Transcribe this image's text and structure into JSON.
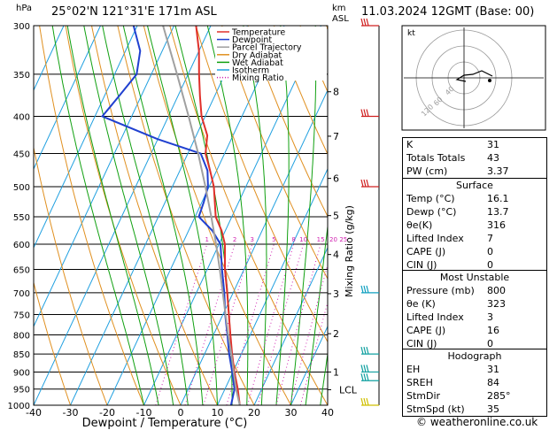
{
  "header": {
    "hpa_label": "hPa",
    "location": "25°02'N  121°31'E  171m  ASL",
    "km_label": "km",
    "asl_label": "ASL",
    "datetime": "11.03.2024  12GMT  (Base: 00)"
  },
  "footer": {
    "credit": "© weatheronline.co.uk"
  },
  "legend": [
    {
      "label": "Temperature",
      "color": "#e0302a",
      "style": "solid"
    },
    {
      "label": "Dewpoint",
      "color": "#2040d0",
      "style": "solid"
    },
    {
      "label": "Parcel Trajectory",
      "color": "#a0a0a0",
      "style": "solid"
    },
    {
      "label": "Dry Adiabat",
      "color": "#e09020",
      "style": "solid"
    },
    {
      "label": "Wet Adiabat",
      "color": "#10a010",
      "style": "solid"
    },
    {
      "label": "Isotherm",
      "color": "#20a0e0",
      "style": "solid"
    },
    {
      "label": "Mixing Ratio",
      "color": "#d020b0",
      "style": "dotted"
    }
  ],
  "chart_data": {
    "type": "line",
    "xlabel": "Dewpoint / Temperature (°C)",
    "ylabel": "Mixing Ratio (g/kg)",
    "xlim": [
      -40,
      40
    ],
    "ylim": [
      1000,
      300
    ],
    "pressure_ticks": [
      300,
      350,
      400,
      450,
      500,
      550,
      600,
      650,
      700,
      750,
      800,
      850,
      900,
      950,
      1000
    ],
    "temp_ticks": [
      -40,
      -30,
      -20,
      -10,
      0,
      10,
      20,
      30,
      40
    ],
    "altitude_km": [
      {
        "label": "8",
        "p": 370
      },
      {
        "label": "7",
        "p": 426
      },
      {
        "label": "6",
        "p": 487
      },
      {
        "label": "5",
        "p": 548
      },
      {
        "label": "4",
        "p": 620
      },
      {
        "label": "3",
        "p": 702
      },
      {
        "label": "2",
        "p": 797
      },
      {
        "label": "1",
        "p": 900
      },
      {
        "label": "LCL",
        "p": 952
      }
    ],
    "mixing_ratio_labels": [
      {
        "label": "1",
        "T": -6.8
      },
      {
        "label": "2",
        "T": 1.2
      },
      {
        "label": "3",
        "T": 6.2
      },
      {
        "label": "5",
        "T": 12.5
      },
      {
        "label": "8",
        "T": 18.2
      },
      {
        "label": "10",
        "T": 21.0
      },
      {
        "label": "15",
        "T": 26.0
      },
      {
        "label": "20",
        "T": 29.7
      },
      {
        "label": "25",
        "T": 32.6
      }
    ],
    "series": [
      {
        "name": "Temperature",
        "points": [
          [
            1000,
            16.1
          ],
          [
            950,
            13.5
          ],
          [
            900,
            10.4
          ],
          [
            850,
            7.5
          ],
          [
            800,
            4.6
          ],
          [
            750,
            1.6
          ],
          [
            700,
            -1.6
          ],
          [
            650,
            -5.2
          ],
          [
            600,
            -8.4
          ],
          [
            575,
            -11.0
          ],
          [
            550,
            -14.4
          ],
          [
            525,
            -16.5
          ],
          [
            500,
            -18.7
          ],
          [
            475,
            -21.8
          ],
          [
            450,
            -25.2
          ],
          [
            425,
            -27.0
          ],
          [
            400,
            -31.0
          ],
          [
            375,
            -34.0
          ],
          [
            350,
            -37.0
          ],
          [
            325,
            -40.0
          ],
          [
            300,
            -44.0
          ]
        ]
      },
      {
        "name": "Dewpoint",
        "points": [
          [
            1000,
            13.7
          ],
          [
            950,
            12.6
          ],
          [
            900,
            9.8
          ],
          [
            850,
            6.7
          ],
          [
            800,
            3.8
          ],
          [
            750,
            0.6
          ],
          [
            700,
            -2.4
          ],
          [
            650,
            -6.0
          ],
          [
            600,
            -9.6
          ],
          [
            575,
            -13.5
          ],
          [
            550,
            -19.0
          ],
          [
            525,
            -19.5
          ],
          [
            500,
            -20.3
          ],
          [
            475,
            -22.5
          ],
          [
            450,
            -26.5
          ],
          [
            430,
            -40.0
          ],
          [
            400,
            -58.0
          ],
          [
            375,
            -56.0
          ],
          [
            350,
            -54.0
          ],
          [
            325,
            -56.0
          ],
          [
            300,
            -61.0
          ]
        ]
      },
      {
        "name": "Parcel Trajectory",
        "points": [
          [
            1000,
            16.1
          ],
          [
            950,
            13.0
          ],
          [
            900,
            10.2
          ],
          [
            850,
            7.3
          ],
          [
            800,
            4.0
          ],
          [
            750,
            0.7
          ],
          [
            700,
            -2.8
          ],
          [
            650,
            -6.6
          ],
          [
            600,
            -10.8
          ],
          [
            550,
            -15.6
          ],
          [
            500,
            -21.0
          ],
          [
            450,
            -27.2
          ],
          [
            400,
            -34.5
          ],
          [
            350,
            -43.0
          ],
          [
            300,
            -53.0
          ]
        ]
      }
    ],
    "wind_barbs_p": [
      300,
      400,
      500,
      700,
      850,
      900,
      925,
      1000
    ],
    "hodograph": {
      "label": "kt",
      "ring_labels": [
        "40",
        "60",
        "120"
      ]
    }
  },
  "indices": {
    "rows": [
      {
        "k": "K",
        "v": "31"
      },
      {
        "k": "Totals Totals",
        "v": "43"
      },
      {
        "k": "PW (cm)",
        "v": "3.37"
      }
    ],
    "surface": {
      "title": "Surface",
      "rows": [
        {
          "k": "Temp (°C)",
          "v": "16.1"
        },
        {
          "k": "Dewp (°C)",
          "v": "13.7"
        },
        {
          "k": "θe(K)",
          "v": "316"
        },
        {
          "k": "Lifted Index",
          "v": "7"
        },
        {
          "k": "CAPE (J)",
          "v": "0"
        },
        {
          "k": "CIN (J)",
          "v": "0"
        }
      ]
    },
    "most_unstable": {
      "title": "Most Unstable",
      "rows": [
        {
          "k": "Pressure (mb)",
          "v": "800"
        },
        {
          "k": "θe (K)",
          "v": "323"
        },
        {
          "k": "Lifted Index",
          "v": "3"
        },
        {
          "k": "CAPE (J)",
          "v": "16"
        },
        {
          "k": "CIN (J)",
          "v": "0"
        }
      ]
    },
    "hodograph_tbl": {
      "title": "Hodograph",
      "rows": [
        {
          "k": "EH",
          "v": "31"
        },
        {
          "k": "SREH",
          "v": "84"
        },
        {
          "k": "StmDir",
          "v": "285°"
        },
        {
          "k": "StmSpd (kt)",
          "v": "35"
        }
      ]
    }
  }
}
